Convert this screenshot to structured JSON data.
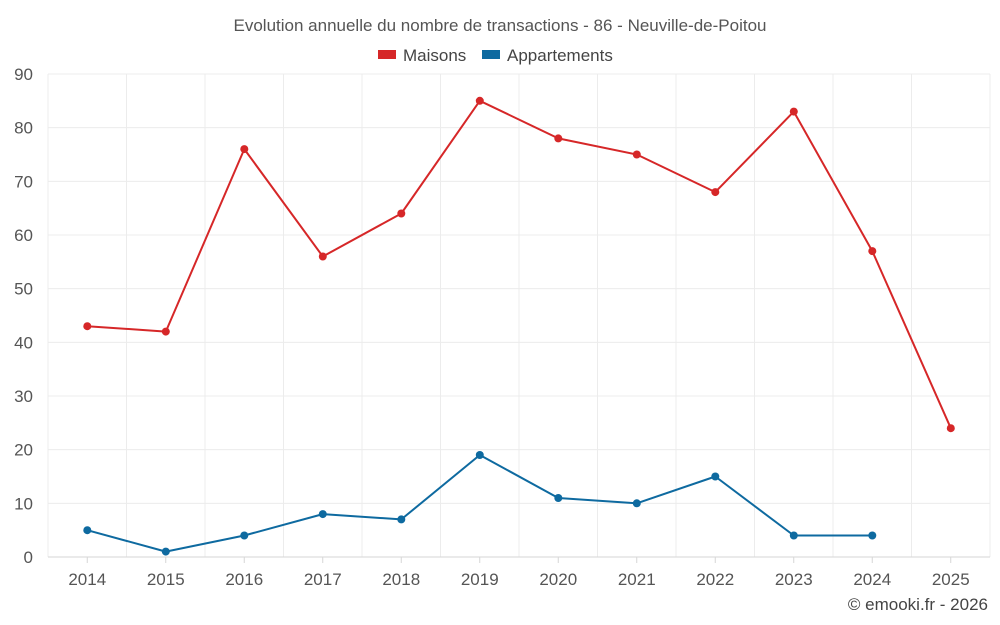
{
  "chart_data": {
    "type": "line",
    "title": "Evolution annuelle du nombre de transactions - 86 - Neuville-de-Poitou",
    "xlabel": "",
    "ylabel": "",
    "categories": [
      "2014",
      "2015",
      "2016",
      "2017",
      "2018",
      "2019",
      "2020",
      "2021",
      "2022",
      "2023",
      "2024",
      "2025"
    ],
    "ylim": [
      0,
      90
    ],
    "yticks": [
      0,
      10,
      20,
      30,
      40,
      50,
      60,
      70,
      80,
      90
    ],
    "grid": true,
    "legend_position": "top-center",
    "series": [
      {
        "name": "Maisons",
        "color": "#d62728",
        "values": [
          43,
          42,
          76,
          56,
          64,
          85,
          78,
          75,
          68,
          83,
          57,
          24
        ]
      },
      {
        "name": "Appartements",
        "color": "#0e6aa0",
        "values": [
          5,
          1,
          4,
          8,
          7,
          19,
          11,
          10,
          15,
          4,
          4,
          null
        ]
      }
    ]
  },
  "credit": "© emooki.fr - 2026"
}
